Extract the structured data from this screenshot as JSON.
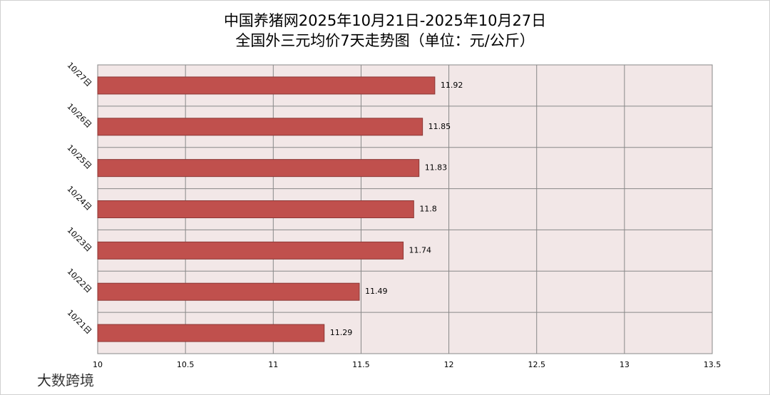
{
  "chart_data": {
    "type": "barh",
    "title": "中国养猪网2025年10月21日-2025年10月27日",
    "subtitle": "全国外三元均价7天走势图（单位：元/公斤）",
    "categories": [
      "10/21日",
      "10/22日",
      "10/23日",
      "10/24日",
      "10/25日",
      "10/26日",
      "10/27日"
    ],
    "values": [
      11.29,
      11.49,
      11.74,
      11.8,
      11.83,
      11.85,
      11.92
    ],
    "color": "#c0504d",
    "xlim": [
      10,
      13.5
    ],
    "xticks": [
      10,
      10.5,
      11,
      11.5,
      12,
      12.5,
      13,
      13.5
    ],
    "grid": true,
    "watermark": "大数跨境"
  }
}
